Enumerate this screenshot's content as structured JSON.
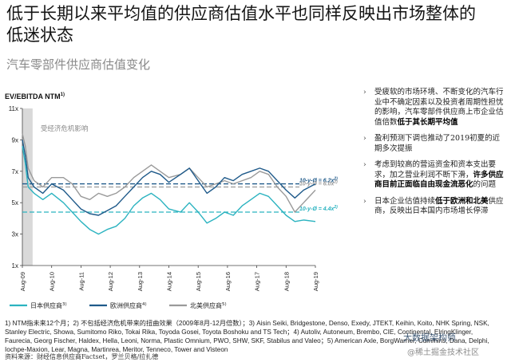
{
  "page": {
    "title": "低于长期以来平均值的供应商估值水平也同样反映出市场整体的低迷状态",
    "subtitle": "汽车零部件供应商估值变化"
  },
  "chart_data": {
    "type": "line",
    "ylabel": "EV/EBITDA NTM",
    "ylabel_sup": "1)",
    "ylim": [
      1,
      11
    ],
    "yticks": [
      "1x",
      "3x",
      "5x",
      "7x",
      "9x",
      "11x"
    ],
    "ytick_values": [
      1,
      3,
      5,
      7,
      9,
      11
    ],
    "xticks": [
      "Aug-09",
      "Aug-10",
      "Aug-11",
      "Aug-12",
      "Aug-13",
      "Aug-14",
      "Aug-15",
      "Aug-16",
      "Aug-17",
      "Aug-18",
      "Aug-19"
    ],
    "crisis_label": "受经济危机影响",
    "crisis_range": [
      2009.6,
      2009.95
    ],
    "series": [
      {
        "name": "日本供应商",
        "sup": "3)",
        "color": "#2bb3c0",
        "x": [
          2009.6,
          2009.7,
          2009.8,
          2010.0,
          2010.3,
          2010.6,
          2011.0,
          2011.3,
          2011.6,
          2011.9,
          2012.2,
          2012.5,
          2012.8,
          2013.1,
          2013.4,
          2013.7,
          2014.0,
          2014.3,
          2014.6,
          2015.0,
          2015.3,
          2015.6,
          2015.9,
          2016.2,
          2016.5,
          2016.8,
          2017.1,
          2017.4,
          2017.7,
          2018.0,
          2018.3,
          2018.6,
          2018.9,
          2019.2,
          2019.6
        ],
        "values": [
          8.6,
          7.5,
          6.0,
          5.6,
          5.2,
          5.6,
          5.0,
          4.4,
          3.8,
          3.3,
          3.0,
          3.3,
          3.5,
          4.0,
          4.8,
          5.3,
          5.6,
          5.2,
          4.6,
          4.4,
          5.0,
          4.4,
          3.7,
          4.0,
          4.4,
          4.2,
          4.8,
          5.2,
          5.6,
          5.4,
          4.8,
          4.2,
          3.8,
          3.9,
          3.8
        ]
      },
      {
        "name": "欧洲供应商",
        "sup": "4)",
        "color": "#1f5a8a",
        "x": [
          2009.6,
          2009.7,
          2009.8,
          2010.0,
          2010.3,
          2010.6,
          2011.0,
          2011.3,
          2011.6,
          2011.9,
          2012.2,
          2012.5,
          2012.8,
          2013.1,
          2013.4,
          2013.7,
          2014.0,
          2014.3,
          2014.6,
          2015.0,
          2015.3,
          2015.6,
          2015.9,
          2016.2,
          2016.5,
          2016.8,
          2017.1,
          2017.4,
          2017.7,
          2018.0,
          2018.3,
          2018.6,
          2018.9,
          2019.2,
          2019.6
        ],
        "values": [
          9.0,
          8.0,
          6.6,
          6.0,
          5.6,
          6.2,
          5.8,
          5.2,
          4.6,
          4.3,
          4.2,
          4.5,
          4.8,
          5.4,
          6.0,
          6.6,
          7.0,
          6.8,
          6.3,
          6.8,
          7.2,
          6.4,
          5.6,
          6.0,
          6.6,
          6.4,
          6.8,
          7.0,
          7.2,
          7.0,
          6.4,
          5.8,
          5.3,
          5.8,
          6.2
        ]
      },
      {
        "name": "北美供应商",
        "sup": "5)",
        "color": "#9a9a9a",
        "x": [
          2009.6,
          2009.7,
          2009.8,
          2010.0,
          2010.3,
          2010.6,
          2011.0,
          2011.3,
          2011.6,
          2011.9,
          2012.2,
          2012.5,
          2012.8,
          2013.1,
          2013.4,
          2013.7,
          2014.0,
          2014.3,
          2014.6,
          2015.0,
          2015.3,
          2015.6,
          2015.9,
          2016.2,
          2016.5,
          2016.8,
          2017.1,
          2017.4,
          2017.7,
          2018.0,
          2018.3,
          2018.6,
          2018.9,
          2019.2,
          2019.6
        ],
        "values": [
          9.4,
          8.6,
          7.2,
          6.4,
          6.0,
          6.6,
          6.6,
          6.2,
          5.4,
          5.2,
          5.6,
          5.4,
          5.6,
          6.0,
          6.6,
          7.0,
          7.4,
          7.0,
          6.6,
          6.8,
          7.2,
          6.6,
          6.0,
          6.2,
          6.4,
          6.2,
          6.4,
          6.6,
          7.0,
          6.8,
          6.0,
          5.4,
          4.4,
          5.0,
          5.8
        ]
      }
    ],
    "averages": [
      {
        "label": "10-y-Ø = 6.2x",
        "sup": "2)",
        "value": 6.2,
        "color": "#1f5a8a"
      },
      {
        "label": "10-y-Ø = 6.0x",
        "sup": "2)",
        "value": 6.0,
        "color": "#9a9a9a"
      },
      {
        "label": "10-y-Ø = 4.4x",
        "sup": "2)",
        "value": 4.4,
        "color": "#2bb3c0"
      }
    ],
    "legend": [
      "日本供应商",
      "欧洲供应商",
      "北美供应商"
    ],
    "legend_position": "bottom"
  },
  "bullets": [
    {
      "pre": "受疲软的市场环境、不断变化的汽车行业中不确定因素以及投资者周期性担忧的影响，汽车零部件供应商上市企业估值倍数",
      "bold": "低于其长期平均值",
      "post": ""
    },
    {
      "pre": "盈利预测下调也推动了2019初夏的近期多次提振",
      "bold": "",
      "post": ""
    },
    {
      "pre": "考虑到较高的营运资金和资本支出要求，加之营业利润不断下滑，",
      "bold": "许多供应商目前正面临自由现金流恶化",
      "post": "的问题"
    },
    {
      "pre": "日本企业估值持续",
      "bold": "低于欧洲和北美",
      "post": "供应商，反映出日本国内市场增长停滞"
    }
  ],
  "footnote": "1) NTM指未来12个月；2) 不包括经济危机带来的扭曲效果（2009年8月-12月倍数）；3) Aisin Seiki, Bridgestone, Denso, Exedy, JTEKT, Keihin, Koito, NHK Spring, NSK, Stanley Electric, Showa, Sumitomo Riko, Tokai Rika, Toyoda Gosei, Toyota Boshoku and TS Tech；4) Autoliv, Autoneum, Brembo, CIE, Continental, ElringKlinger, Faurecia, Georg Fischer, Haldex, Hella, Leoni, Norma, Plastic Omnium, PWO, SHW, SKF, Stabilus and Valeo；5) American Axle, BorgWarner, Cummins, Dana, Delphi, Iochpe-Maxion, Lear, Magna, Martinrea, Meritor, Tenneco, Tower and Visteon",
  "source": "资料来源：财经信息供应商Factset，罗兰贝格/拉扎德",
  "watermark": {
    "line1": "大数据架构师",
    "line2": "@稀土掘金技术社区"
  }
}
